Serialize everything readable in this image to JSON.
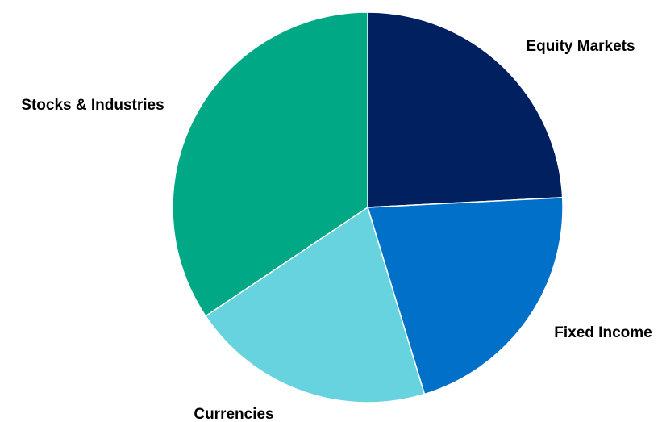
{
  "chart_data": {
    "type": "pie",
    "title": "",
    "start_angle_deg": 0,
    "direction": "clockwise",
    "slices": [
      {
        "label": "Equity Markets",
        "value": 24.2,
        "color": "#002060"
      },
      {
        "label": "Fixed Income",
        "value": 21.1,
        "color": "#0070C8"
      },
      {
        "label": "Currencies",
        "value": 20.3,
        "color": "#66D3DE"
      },
      {
        "label": "Stocks & Industries",
        "value": 34.4,
        "color": "#00A886"
      }
    ]
  }
}
